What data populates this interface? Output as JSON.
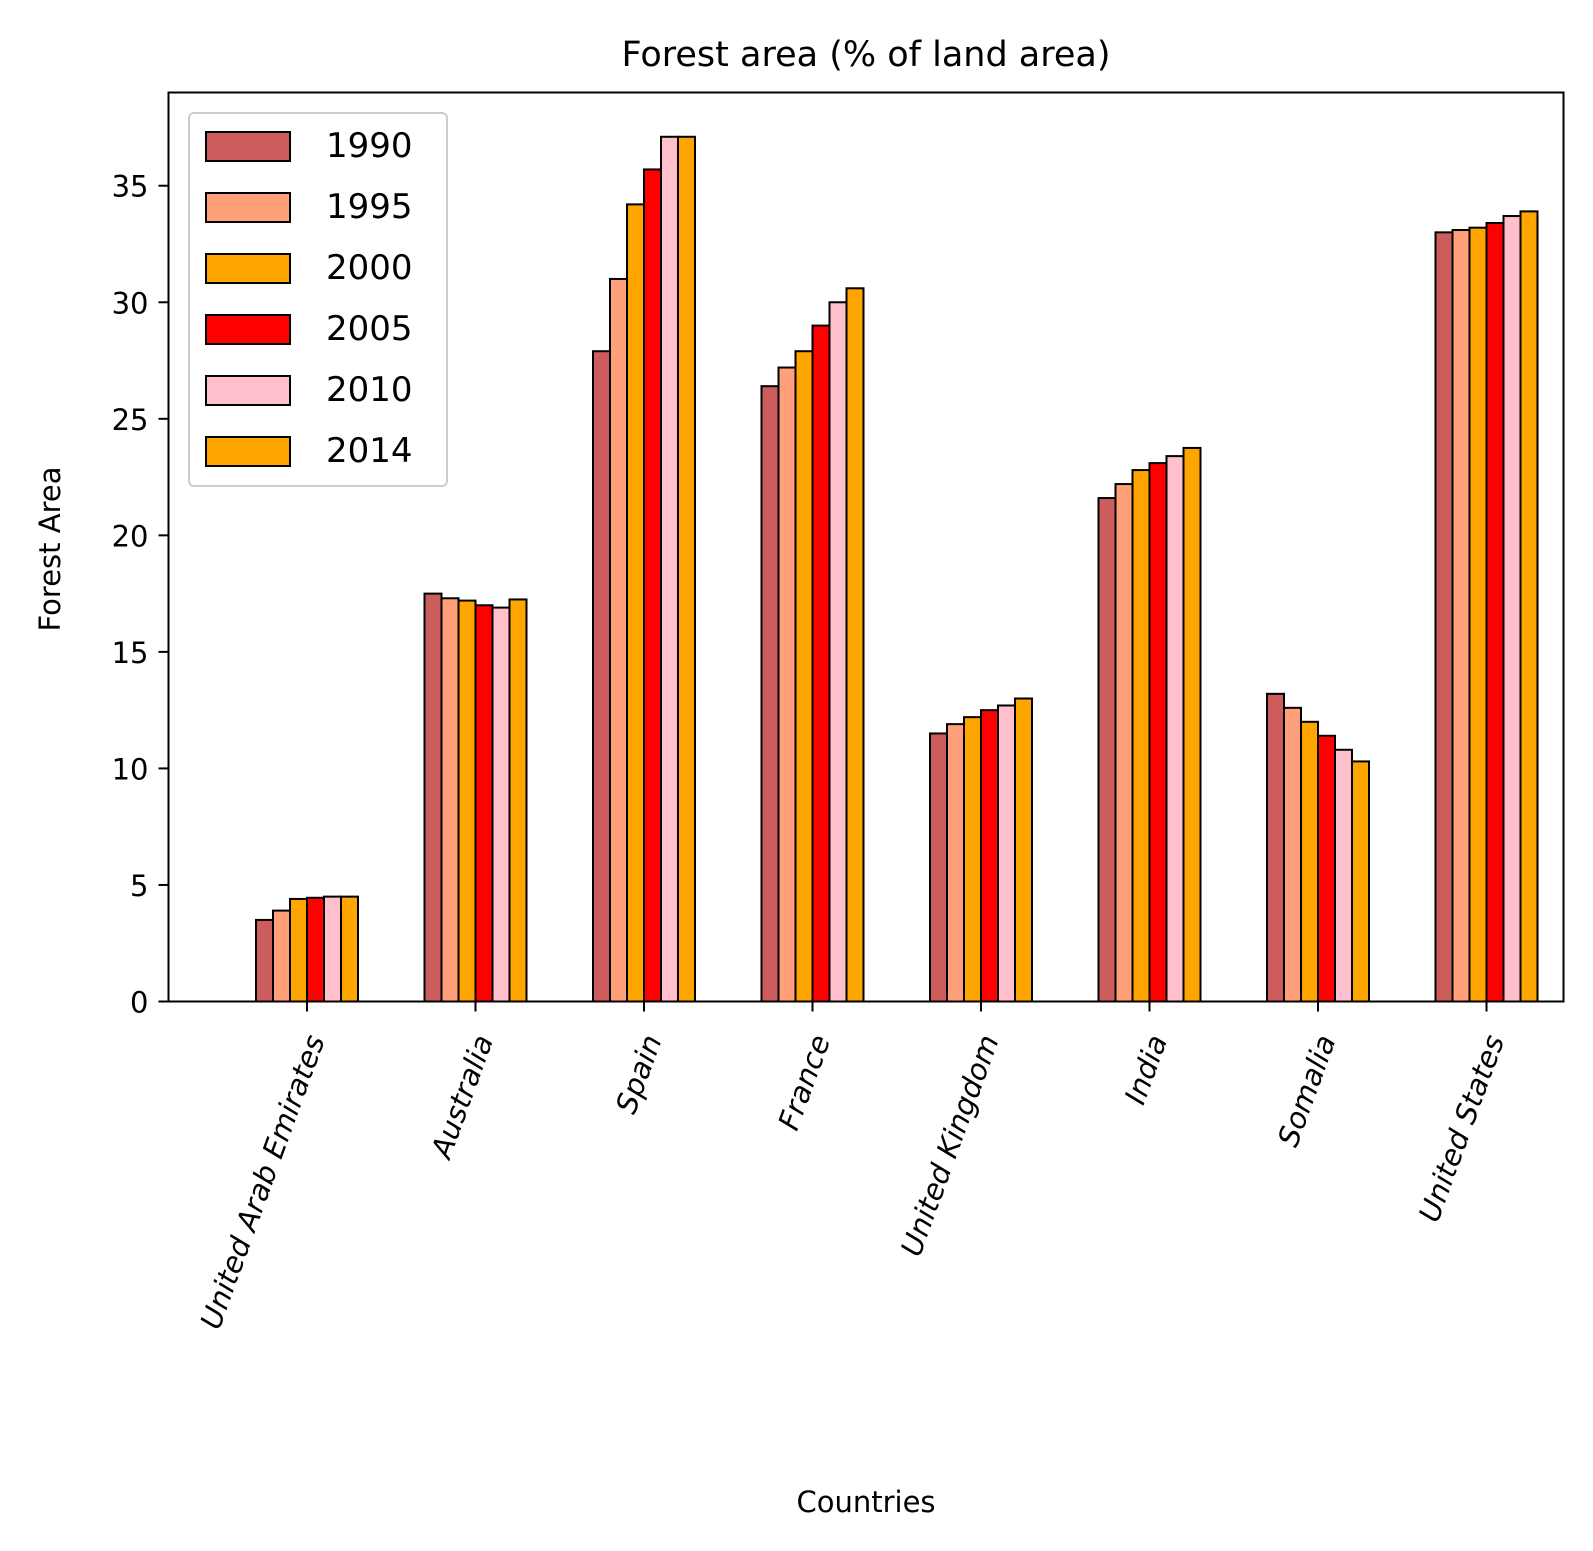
{
  "chart_data": {
    "type": "bar",
    "title": "Forest area (% of land area)",
    "xlabel": "Countries",
    "ylabel": "Forest Area",
    "ylim": [
      0,
      39
    ],
    "yticks": [
      0,
      5,
      10,
      15,
      20,
      25,
      30,
      35
    ],
    "grid": false,
    "legend_position": "top-left",
    "categories": [
      "United Arab Emirates",
      "Australia",
      "Spain",
      "France",
      "United Kingdom",
      "India",
      "Somalia",
      "United States"
    ],
    "series": [
      {
        "name": "1990",
        "color": "#cd5c5c",
        "values": [
          3.5,
          17.5,
          27.9,
          26.4,
          11.5,
          21.6,
          13.2,
          33.0
        ]
      },
      {
        "name": "1995",
        "color": "#ffa07a",
        "values": [
          3.9,
          17.3,
          31.0,
          27.2,
          11.9,
          22.2,
          12.6,
          33.1
        ]
      },
      {
        "name": "2000",
        "color": "#ffa500",
        "values": [
          4.4,
          17.2,
          34.2,
          27.9,
          12.2,
          22.8,
          12.0,
          33.2
        ]
      },
      {
        "name": "2005",
        "color": "#ff0000",
        "values": [
          4.45,
          17.0,
          35.7,
          29.0,
          12.5,
          23.1,
          11.4,
          33.4
        ]
      },
      {
        "name": "2010",
        "color": "#ffc0cb",
        "values": [
          4.5,
          16.9,
          37.1,
          30.0,
          12.7,
          23.4,
          10.8,
          33.7
        ]
      },
      {
        "name": "2014",
        "color": "#ffa500",
        "values": [
          4.5,
          17.25,
          37.1,
          30.6,
          13.0,
          23.75,
          10.3,
          33.9
        ]
      }
    ]
  }
}
